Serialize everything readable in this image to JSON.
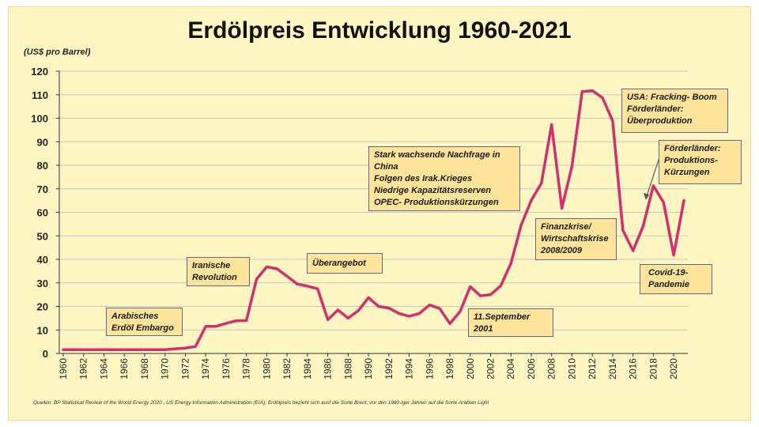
{
  "chart_data": {
    "type": "line",
    "title": "Erdölpreis Entwicklung 1960-2021",
    "ylabel": "(US$ pro Barrel)",
    "xlabel": "",
    "ylim": [
      0,
      120
    ],
    "yticks": [
      "0",
      "10",
      "20",
      "30",
      "40",
      "50",
      "60",
      "70",
      "80",
      "90",
      "100",
      "110",
      "120"
    ],
    "xlim": [
      1960,
      2021
    ],
    "xticks": [
      "1960",
      "1962",
      "1964",
      "1966",
      "1968",
      "1970",
      "1972",
      "1974",
      "1976",
      "1978",
      "1980",
      "1982",
      "1984",
      "1986",
      "1988",
      "1990",
      "1992",
      "1994",
      "1996",
      "1998",
      "2000",
      "2002",
      "2004",
      "2006",
      "2008",
      "2010",
      "2012",
      "2014",
      "2016",
      "2018",
      "2020"
    ],
    "grid": true,
    "series": [
      {
        "name": "Erdölpreis",
        "color": "#d0306e",
        "x": [
          1960,
          1961,
          1962,
          1963,
          1964,
          1965,
          1966,
          1967,
          1968,
          1969,
          1970,
          1971,
          1972,
          1973,
          1974,
          1975,
          1976,
          1977,
          1978,
          1979,
          1980,
          1981,
          1982,
          1983,
          1984,
          1985,
          1986,
          1987,
          1988,
          1989,
          1990,
          1991,
          1992,
          1993,
          1994,
          1995,
          1996,
          1997,
          1998,
          1999,
          2000,
          2001,
          2002,
          2003,
          2004,
          2005,
          2006,
          2007,
          2008,
          2009,
          2010,
          2011,
          2012,
          2013,
          2014,
          2015,
          2016,
          2017,
          2018,
          2019,
          2020,
          2021
        ],
        "values": [
          1.6,
          1.6,
          1.6,
          1.6,
          1.6,
          1.6,
          1.6,
          1.6,
          1.6,
          1.6,
          1.6,
          2.0,
          2.3,
          3.0,
          11.5,
          11.5,
          12.8,
          13.9,
          14.0,
          31.6,
          36.8,
          36.0,
          32.8,
          29.5,
          28.6,
          27.5,
          14.4,
          18.5,
          15.0,
          18.2,
          23.7,
          20.0,
          19.3,
          17.0,
          15.8,
          17.0,
          20.6,
          19.1,
          12.7,
          17.8,
          28.4,
          24.5,
          25.0,
          28.8,
          38.3,
          54.5,
          65.1,
          72.4,
          97.3,
          61.7,
          79.5,
          111.3,
          111.7,
          108.7,
          98.9,
          52.4,
          43.7,
          54.2,
          71.3,
          64.2,
          41.8,
          65.0
        ]
      }
    ],
    "annotations": [
      {
        "lines": [
          "Arabisches",
          "Erdöl Embargo"
        ]
      },
      {
        "lines": [
          "Iranische",
          "Revolution"
        ]
      },
      {
        "lines": [
          "Überangebot"
        ]
      },
      {
        "lines": [
          "Stark wachsende Nachfrage in",
          "China",
          "Folgen des Irak.Krieges",
          "Niedrige Kapazitätsreserven",
          "OPEC- Produktionskürzungen"
        ]
      },
      {
        "lines": [
          "11.September",
          "2001"
        ]
      },
      {
        "lines": [
          "Finanzkrise/",
          "Wirtschaftskrise",
          "2008/2009"
        ]
      },
      {
        "lines": [
          "USA: Fracking- Boom",
          "Förderländer:",
          "Überproduktion"
        ]
      },
      {
        "lines": [
          "Förderländer:",
          "Produktions-",
          "Kürzungen"
        ]
      },
      {
        "lines": [
          "Covid-19-",
          "Pandemie"
        ]
      }
    ],
    "source": "Quellen: BP Statistical Review of the World Energy 2020 , US Energy Information Administration (EIA); Erdölpreis bezieht sich ausf die Sorte Brent, vor den 1980-iger Jahren auf die Sorte Arabian Light"
  }
}
